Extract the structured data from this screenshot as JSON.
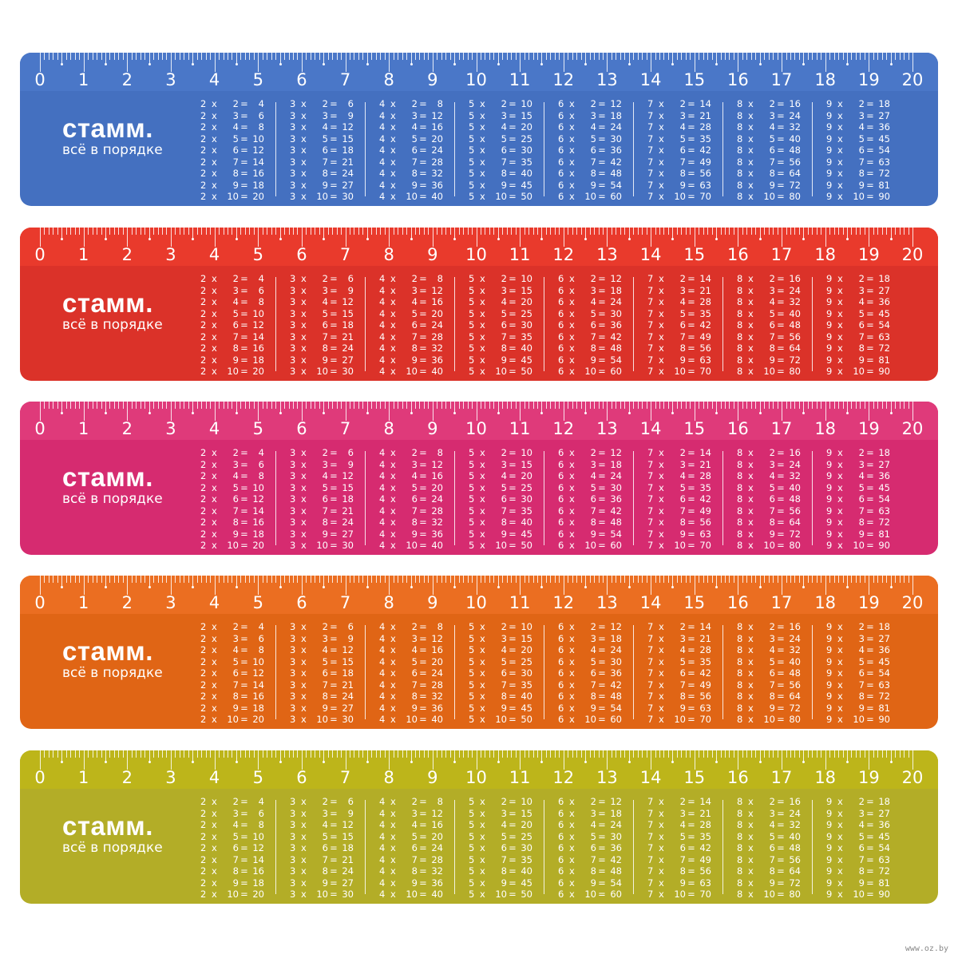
{
  "brand": {
    "name": "стамм.",
    "tagline": "всё в порядке"
  },
  "scale": {
    "labels": [
      "0",
      "1",
      "2",
      "3",
      "4",
      "5",
      "6",
      "7",
      "8",
      "9",
      "10",
      "11",
      "12",
      "13",
      "14",
      "15",
      "16",
      "17",
      "18",
      "19",
      "20"
    ],
    "unit": "cm"
  },
  "rulers": [
    {
      "color": "blue",
      "top_color": "#4a77c8",
      "body_color": "#4470c0"
    },
    {
      "color": "red",
      "top_color": "#e93a2c",
      "body_color": "#db3229"
    },
    {
      "color": "pink",
      "top_color": "#df3a7a",
      "body_color": "#d62b70"
    },
    {
      "color": "orange",
      "top_color": "#eb6e21",
      "body_color": "#e06515"
    },
    {
      "color": "olive",
      "top_color": "#bdb51a",
      "body_color": "#b3ad27"
    }
  ],
  "tables": [
    {
      "rows": [
        "2 x 2 = 4",
        "2 x 3 = 6",
        "2 x 4 = 8",
        "2 x 5 = 10",
        "2 x 6 = 12",
        "2 x 7 = 14",
        "2 x 8 = 16",
        "2 x 9 = 18",
        "2 x 10 = 20"
      ]
    },
    {
      "rows": [
        "3 x 2 = 6",
        "3 x 3 = 9",
        "3 x 4 = 12",
        "3 x 5 = 15",
        "3 x 6 = 18",
        "3 x 7 = 21",
        "3 x 8 = 24",
        "3 x 9 = 27",
        "3 x 10 = 30"
      ]
    },
    {
      "rows": [
        "4 x 2 = 8",
        "4 x 3 = 12",
        "4 x 4 = 16",
        "4 x 5 = 20",
        "4 x 6 = 24",
        "4 x 7 = 28",
        "4 x 8 = 32",
        "4 x 9 = 36",
        "4 x 10 = 40"
      ]
    },
    {
      "rows": [
        "5 x 2 = 10",
        "5 x 3 = 15",
        "5 x 4 = 20",
        "5 x 5 = 25",
        "5 x 6 = 30",
        "5 x 7 = 35",
        "5 x 8 = 40",
        "5 x 9 = 45",
        "5 x 10 = 50"
      ]
    },
    {
      "rows": [
        "6 x 2 = 12",
        "6 x 3 = 18",
        "6 x 4 = 24",
        "6 x 5 = 30",
        "6 x 6 = 36",
        "6 x 7 = 42",
        "6 x 8 = 48",
        "6 x 9 = 54",
        "6 x 10 = 60"
      ]
    },
    {
      "rows": [
        "7 x 2 = 14",
        "7 x 3 = 21",
        "7 x 4 = 28",
        "7 x 5 = 35",
        "7 x 6 = 42",
        "7 x 7 = 49",
        "7 x 8 = 56",
        "7 x 9 = 63",
        "7 x 10 = 70"
      ]
    },
    {
      "rows": [
        "8 x 2 = 16",
        "8 x 3 = 24",
        "8 x 4 = 32",
        "8 x 5 = 40",
        "8 x 6 = 48",
        "8 x 7 = 56",
        "8 x 8 = 64",
        "8 x 9 = 72",
        "8 x 10 = 80"
      ]
    },
    {
      "rows": [
        "9 x 2 = 18",
        "9 x 3 = 27",
        "9 x 4 = 36",
        "9 x 5 = 45",
        "9 x 6 = 54",
        "9 x 7 = 63",
        "9 x 8 = 72",
        "9 x 9 = 81",
        "9 x 10 = 90"
      ]
    }
  ],
  "watermark": "www.oz.by"
}
